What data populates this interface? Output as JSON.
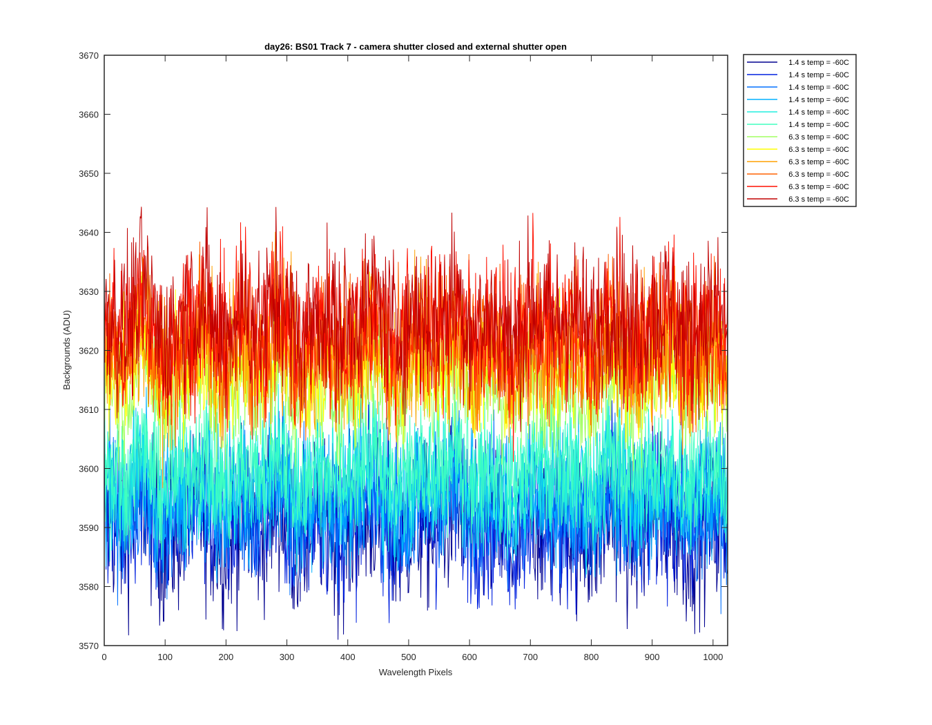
{
  "chart_data": {
    "type": "line",
    "title": "day26: BS01  Track 7 - camera shutter closed and external shutter open",
    "xlabel": "Wavelength Pixels",
    "ylabel": "Backgrounds (ADU)",
    "xlim": [
      0,
      1024
    ],
    "ylim": [
      3570,
      3670
    ],
    "xticks": [
      0,
      100,
      200,
      300,
      400,
      500,
      600,
      700,
      800,
      900,
      1000
    ],
    "yticks": [
      3570,
      3580,
      3590,
      3600,
      3610,
      3620,
      3630,
      3640,
      3650,
      3660,
      3670
    ],
    "grid": false,
    "legend_position": "outside-top-right",
    "note_on_series": "Each series is dense pixel-to-pixel noise; values listed every 32 pixels (approximate readings).",
    "x": [
      0,
      32,
      64,
      96,
      128,
      160,
      192,
      224,
      256,
      288,
      320,
      352,
      384,
      416,
      448,
      480,
      512,
      544,
      576,
      608,
      640,
      672,
      704,
      736,
      768,
      800,
      832,
      864,
      896,
      928,
      960,
      992,
      1023
    ],
    "series": [
      {
        "name": "1.4 s temp = -60C",
        "color": "#00008f",
        "values": [
          3592,
          3588,
          3595,
          3586,
          3590,
          3593,
          3587,
          3591,
          3589,
          3594,
          3586,
          3592,
          3588,
          3590,
          3593,
          3587,
          3591,
          3589,
          3594,
          3588,
          3590,
          3586,
          3592,
          3589,
          3591,
          3587,
          3593,
          3588,
          3590,
          3592,
          3587,
          3591,
          3589
        ]
      },
      {
        "name": "1.4 s temp = -60C",
        "color": "#0020df",
        "values": [
          3594,
          3590,
          3597,
          3588,
          3592,
          3595,
          3589,
          3593,
          3591,
          3596,
          3588,
          3594,
          3590,
          3592,
          3595,
          3589,
          3593,
          3591,
          3596,
          3590,
          3592,
          3588,
          3594,
          3591,
          3593,
          3589,
          3595,
          3590,
          3592,
          3594,
          3589,
          3593,
          3591
        ]
      },
      {
        "name": "1.4 s temp = -60C",
        "color": "#0070ff",
        "values": [
          3596,
          3592,
          3598,
          3590,
          3594,
          3597,
          3591,
          3595,
          3593,
          3598,
          3590,
          3596,
          3592,
          3594,
          3597,
          3591,
          3595,
          3593,
          3598,
          3592,
          3594,
          3590,
          3596,
          3593,
          3595,
          3591,
          3597,
          3592,
          3594,
          3596,
          3591,
          3595,
          3593
        ]
      },
      {
        "name": "1.4 s temp = -60C",
        "color": "#00b0ff",
        "values": [
          3598,
          3594,
          3600,
          3592,
          3596,
          3599,
          3593,
          3597,
          3595,
          3600,
          3592,
          3598,
          3594,
          3596,
          3599,
          3593,
          3597,
          3595,
          3600,
          3594,
          3596,
          3592,
          3598,
          3595,
          3597,
          3593,
          3599,
          3594,
          3596,
          3598,
          3593,
          3597,
          3595
        ]
      },
      {
        "name": "1.4 s temp = -60C",
        "color": "#20efdf",
        "values": [
          3600,
          3596,
          3602,
          3594,
          3598,
          3601,
          3595,
          3599,
          3597,
          3602,
          3594,
          3600,
          3596,
          3598,
          3601,
          3595,
          3599,
          3597,
          3602,
          3596,
          3598,
          3594,
          3600,
          3597,
          3599,
          3595,
          3601,
          3596,
          3598,
          3600,
          3595,
          3599,
          3597
        ]
      },
      {
        "name": "1.4 s temp = -60C",
        "color": "#40ffbf",
        "values": [
          3602,
          3598,
          3604,
          3596,
          3600,
          3603,
          3597,
          3601,
          3599,
          3604,
          3596,
          3602,
          3598,
          3600,
          3603,
          3597,
          3601,
          3599,
          3604,
          3598,
          3600,
          3596,
          3602,
          3599,
          3601,
          3597,
          3603,
          3598,
          3600,
          3602,
          3597,
          3601,
          3599
        ]
      },
      {
        "name": "6.3 s temp = -60C",
        "color": "#a0ff60",
        "values": [
          3616,
          3612,
          3620,
          3610,
          3614,
          3618,
          3611,
          3616,
          3613,
          3619,
          3610,
          3615,
          3612,
          3614,
          3618,
          3611,
          3616,
          3613,
          3619,
          3612,
          3614,
          3610,
          3616,
          3613,
          3615,
          3611,
          3617,
          3612,
          3614,
          3616,
          3611,
          3615,
          3613
        ]
      },
      {
        "name": "6.3 s temp = -60C",
        "color": "#ffff00",
        "values": [
          3619,
          3615,
          3622,
          3612,
          3617,
          3620,
          3614,
          3618,
          3616,
          3621,
          3613,
          3618,
          3615,
          3617,
          3620,
          3614,
          3618,
          3616,
          3621,
          3615,
          3617,
          3613,
          3619,
          3616,
          3618,
          3614,
          3620,
          3615,
          3617,
          3619,
          3614,
          3618,
          3616
        ]
      },
      {
        "name": "6.3 s temp = -60C",
        "color": "#ffa000",
        "values": [
          3622,
          3617,
          3625,
          3615,
          3620,
          3623,
          3616,
          3621,
          3618,
          3624,
          3615,
          3621,
          3617,
          3620,
          3623,
          3616,
          3621,
          3618,
          3624,
          3617,
          3620,
          3615,
          3622,
          3618,
          3621,
          3616,
          3623,
          3617,
          3620,
          3622,
          3616,
          3621,
          3618
        ]
      },
      {
        "name": "6.3 s temp = -60C",
        "color": "#ff6000",
        "values": [
          3624,
          3619,
          3627,
          3617,
          3622,
          3625,
          3618,
          3623,
          3620,
          3626,
          3617,
          3623,
          3619,
          3622,
          3625,
          3618,
          3623,
          3620,
          3626,
          3619,
          3622,
          3617,
          3624,
          3620,
          3623,
          3618,
          3625,
          3619,
          3622,
          3624,
          3618,
          3623,
          3620
        ]
      },
      {
        "name": "6.3 s temp = -60C",
        "color": "#ff1000",
        "values": [
          3626,
          3621,
          3629,
          3619,
          3624,
          3627,
          3620,
          3625,
          3622,
          3628,
          3619,
          3625,
          3621,
          3624,
          3627,
          3620,
          3625,
          3622,
          3628,
          3621,
          3624,
          3619,
          3626,
          3622,
          3625,
          3620,
          3627,
          3621,
          3624,
          3626,
          3620,
          3625,
          3622
        ]
      },
      {
        "name": "6.3 s temp = -60C",
        "color": "#c00000",
        "values": [
          3628,
          3623,
          3631,
          3621,
          3626,
          3629,
          3622,
          3627,
          3624,
          3630,
          3621,
          3627,
          3623,
          3626,
          3629,
          3622,
          3627,
          3624,
          3630,
          3623,
          3626,
          3621,
          3628,
          3624,
          3627,
          3622,
          3629,
          3623,
          3626,
          3628,
          3622,
          3627,
          3624
        ]
      }
    ],
    "series_noise_spread": [
      18,
      18,
      16,
      16,
      14,
      14,
      14,
      14,
      16,
      16,
      18,
      18
    ]
  }
}
